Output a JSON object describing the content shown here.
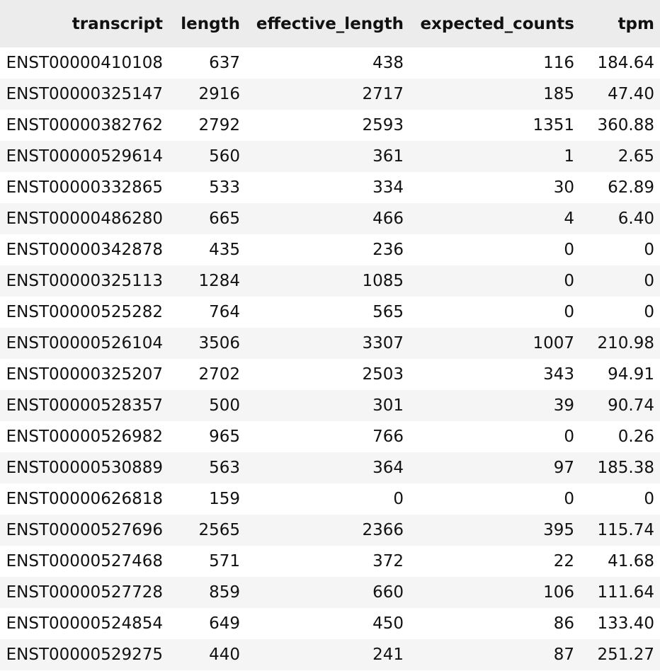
{
  "table": {
    "columns": [
      "transcript",
      "length",
      "effective_length",
      "expected_counts",
      "tpm"
    ],
    "rows": [
      [
        "ENST00000410108",
        "637",
        "438",
        "116",
        "184.64"
      ],
      [
        "ENST00000325147",
        "2916",
        "2717",
        "185",
        "47.40"
      ],
      [
        "ENST00000382762",
        "2792",
        "2593",
        "1351",
        "360.88"
      ],
      [
        "ENST00000529614",
        "560",
        "361",
        "1",
        "2.65"
      ],
      [
        "ENST00000332865",
        "533",
        "334",
        "30",
        "62.89"
      ],
      [
        "ENST00000486280",
        "665",
        "466",
        "4",
        "6.40"
      ],
      [
        "ENST00000342878",
        "435",
        "236",
        "0",
        "0"
      ],
      [
        "ENST00000325113",
        "1284",
        "1085",
        "0",
        "0"
      ],
      [
        "ENST00000525282",
        "764",
        "565",
        "0",
        "0"
      ],
      [
        "ENST00000526104",
        "3506",
        "3307",
        "1007",
        "210.98"
      ],
      [
        "ENST00000325207",
        "2702",
        "2503",
        "343",
        "94.91"
      ],
      [
        "ENST00000528357",
        "500",
        "301",
        "39",
        "90.74"
      ],
      [
        "ENST00000526982",
        "965",
        "766",
        "0",
        "0.26"
      ],
      [
        "ENST00000530889",
        "563",
        "364",
        "97",
        "185.38"
      ],
      [
        "ENST00000626818",
        "159",
        "0",
        "0",
        "0"
      ],
      [
        "ENST00000527696",
        "2565",
        "2366",
        "395",
        "115.74"
      ],
      [
        "ENST00000527468",
        "571",
        "372",
        "22",
        "41.68"
      ],
      [
        "ENST00000527728",
        "859",
        "660",
        "106",
        "111.64"
      ],
      [
        "ENST00000524854",
        "649",
        "450",
        "86",
        "133.40"
      ],
      [
        "ENST00000529275",
        "440",
        "241",
        "87",
        "251.27"
      ]
    ]
  }
}
